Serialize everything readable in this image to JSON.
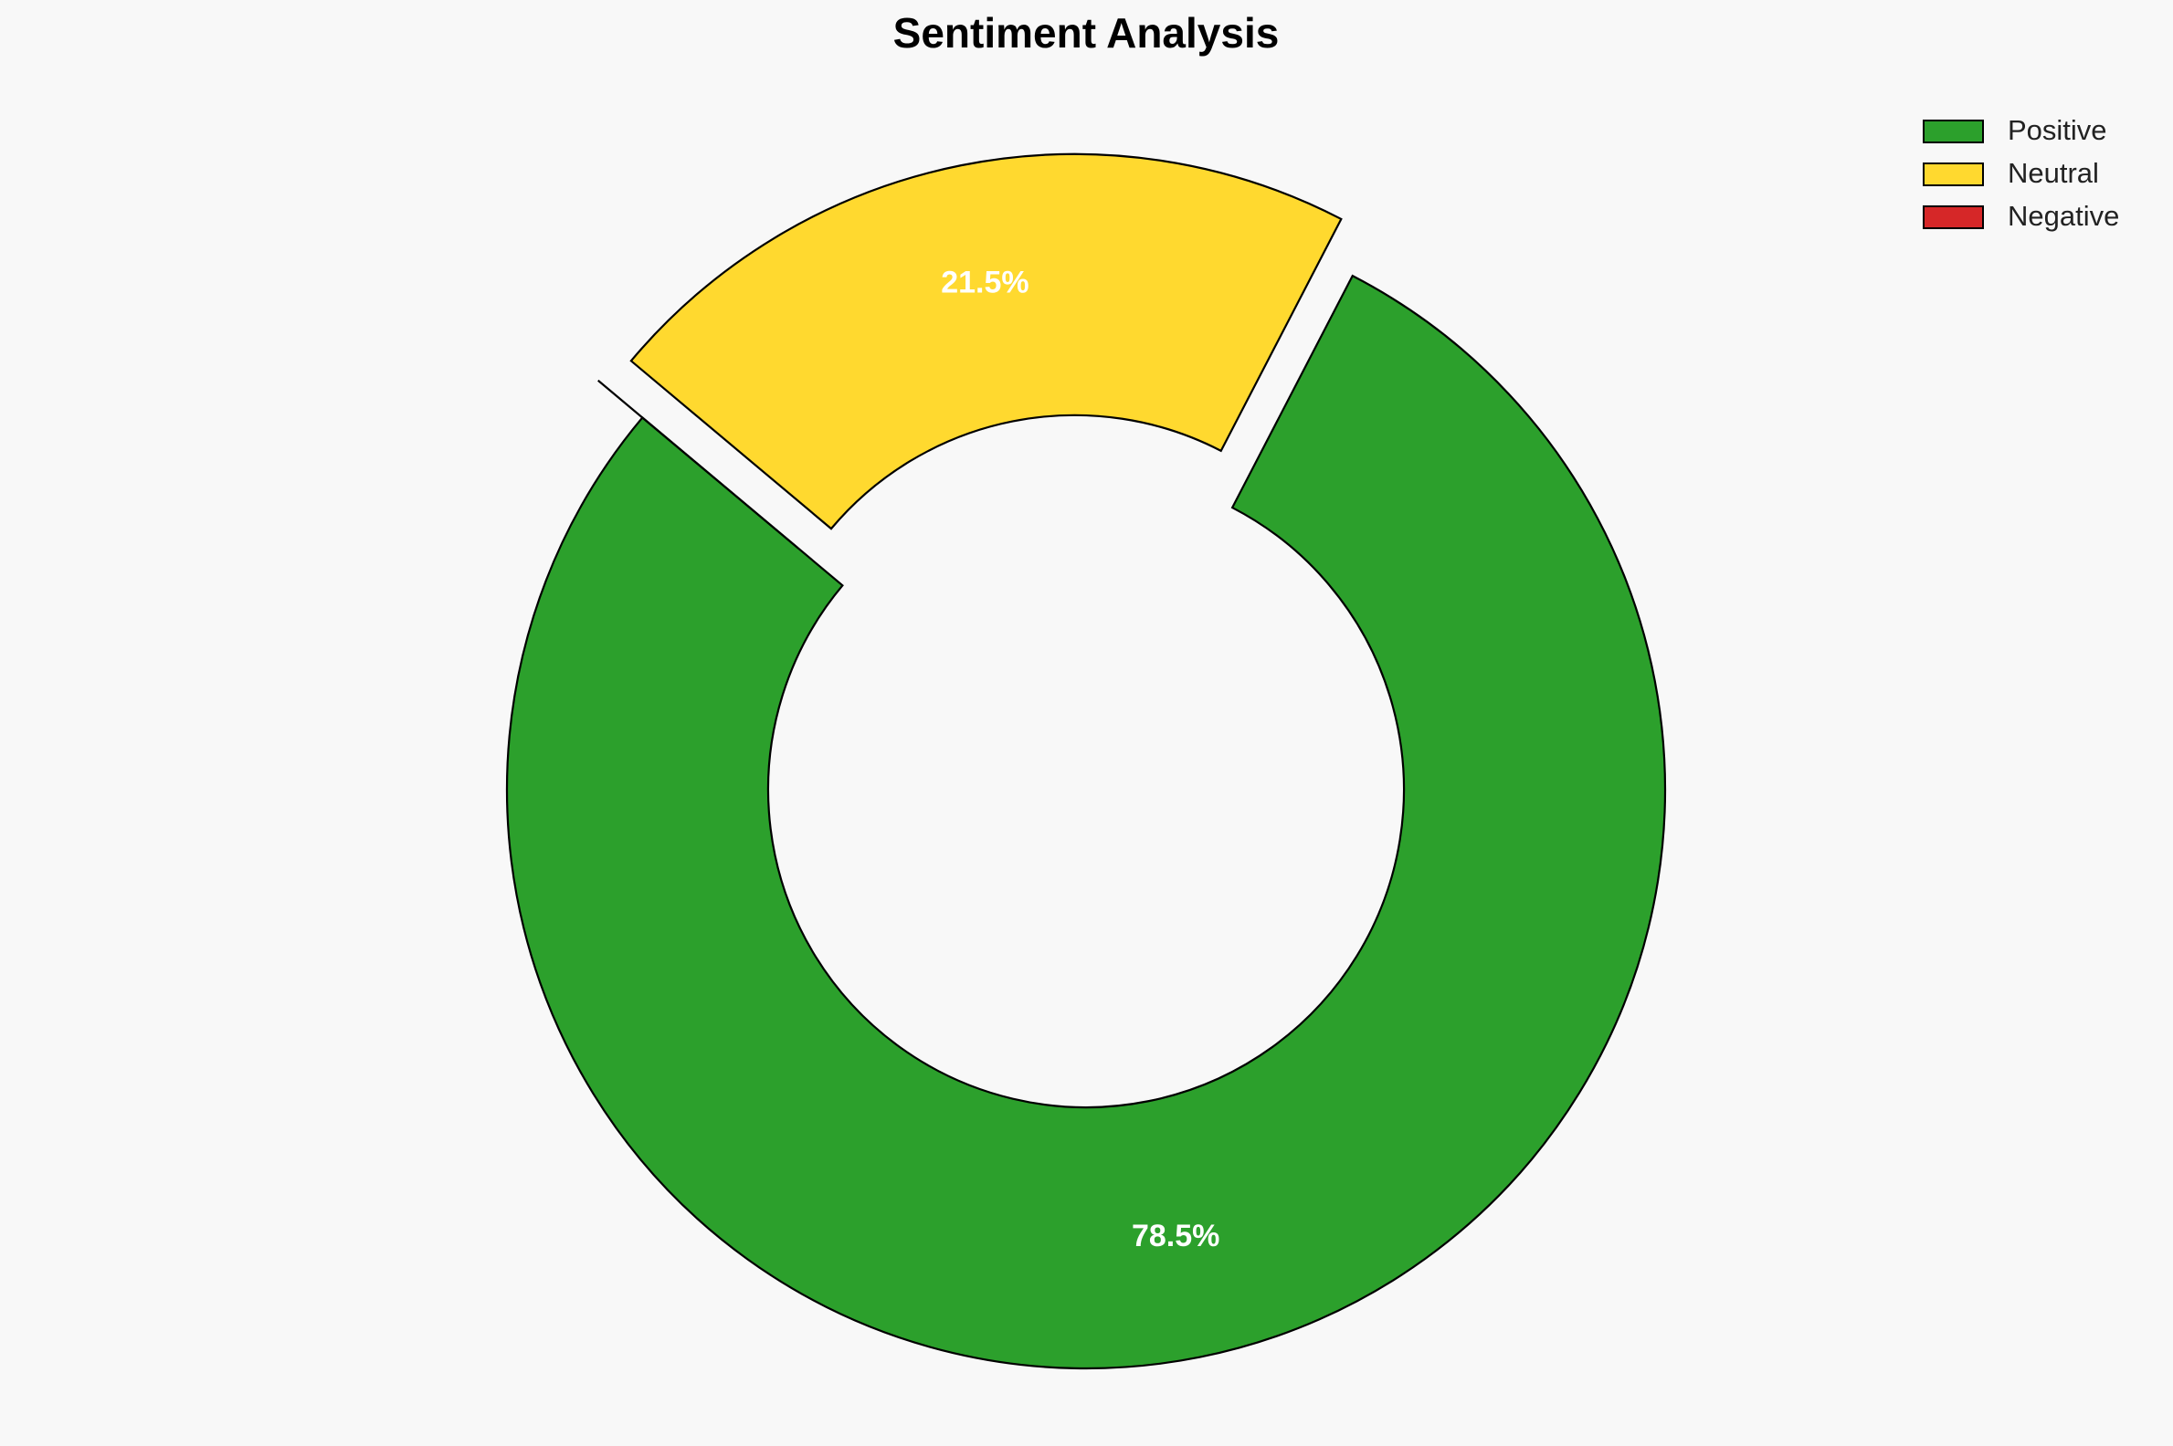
{
  "chart_data": {
    "type": "pie",
    "title": "Sentiment Analysis",
    "categories": [
      "Positive",
      "Neutral",
      "Negative"
    ],
    "values": [
      78.5,
      21.5,
      0
    ],
    "value_labels": [
      "78.5%",
      "21.5%",
      null
    ],
    "colors": [
      "#2ca02c",
      "#ffd92f",
      "#d62728"
    ],
    "explode": [
      0,
      0.1,
      0.1
    ],
    "startangle": 140,
    "donut": true,
    "legend": "upper right"
  }
}
